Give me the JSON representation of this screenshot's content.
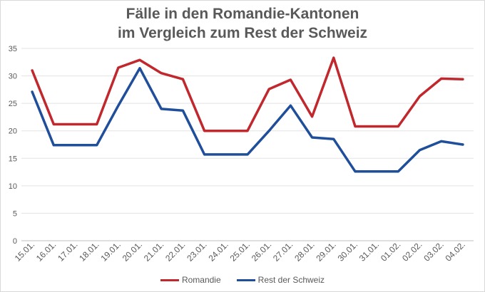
{
  "chart_data": {
    "type": "line",
    "title_lines": [
      "Fälle in den Romandie-Kantonen",
      "im Vergleich zum Rest der Schweiz"
    ],
    "categories": [
      "15.01.",
      "16.01.",
      "17.01.",
      "18.01.",
      "19.01.",
      "20.01.",
      "21.01.",
      "22.01.",
      "23.01.",
      "24.01.",
      "25.01.",
      "26.01.",
      "27.01.",
      "28.01.",
      "29.01.",
      "30.01.",
      "31.01.",
      "01.02.",
      "02.02.",
      "03.02.",
      "04.02."
    ],
    "series": [
      {
        "name": "Romandie",
        "color": "#c0282d",
        "values": [
          31.0,
          21.2,
          21.2,
          21.2,
          31.5,
          32.9,
          30.5,
          29.4,
          20.0,
          20.0,
          20.0,
          27.6,
          29.3,
          22.6,
          33.3,
          20.8,
          20.8,
          20.8,
          26.3,
          29.5,
          29.4
        ]
      },
      {
        "name": "Rest der Schweiz",
        "color": "#1f4e9a",
        "values": [
          27.1,
          17.4,
          17.4,
          17.4,
          24.6,
          31.4,
          24.0,
          23.7,
          15.7,
          15.7,
          15.7,
          20.0,
          24.6,
          18.8,
          18.5,
          12.6,
          12.6,
          12.6,
          16.5,
          18.1,
          17.5
        ]
      }
    ],
    "yticks": [
      0,
      5,
      10,
      15,
      20,
      25,
      30,
      35
    ],
    "ylim": [
      0,
      35
    ],
    "grid": true,
    "legend_position": "bottom"
  }
}
